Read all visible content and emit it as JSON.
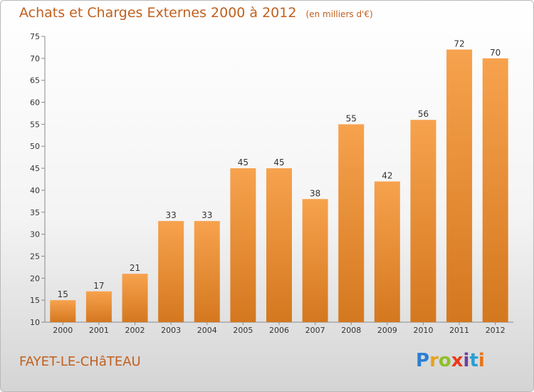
{
  "title": "Achats et Charges Externes 2000 à 2012",
  "unit_label": "(en milliers d'€)",
  "place_name": "FAYET-LE-CHâTEAU",
  "logo": {
    "text": "Proxiti",
    "letters": [
      "P",
      "r",
      "o",
      "x",
      "i",
      "t",
      "i"
    ],
    "colors": [
      "#2a7fd4",
      "#e8a21a",
      "#8fbf2a",
      "#e83a1c",
      "#6b3f9e",
      "#2a9fd4",
      "#e8741a"
    ]
  },
  "chart_data": {
    "type": "bar",
    "title": "Achats et Charges Externes 2000 à 2012",
    "subtitle": "(en milliers d'€)",
    "xlabel": "",
    "ylabel": "",
    "categories": [
      "2000",
      "2001",
      "2002",
      "2003",
      "2004",
      "2005",
      "2006",
      "2007",
      "2008",
      "2009",
      "2010",
      "2011",
      "2012"
    ],
    "values": [
      15,
      17,
      21,
      33,
      33,
      45,
      45,
      38,
      55,
      42,
      56,
      72,
      70
    ],
    "ylim": [
      10,
      75
    ],
    "yticks": [
      10,
      15,
      20,
      25,
      30,
      35,
      40,
      45,
      50,
      55,
      60,
      65,
      70,
      75
    ],
    "grid": false,
    "legend": "none",
    "colors": {
      "bar_light": "#f7a24e",
      "bar_dark": "#d4781f",
      "axis": "#8a8a8a",
      "text": "#333333"
    }
  }
}
